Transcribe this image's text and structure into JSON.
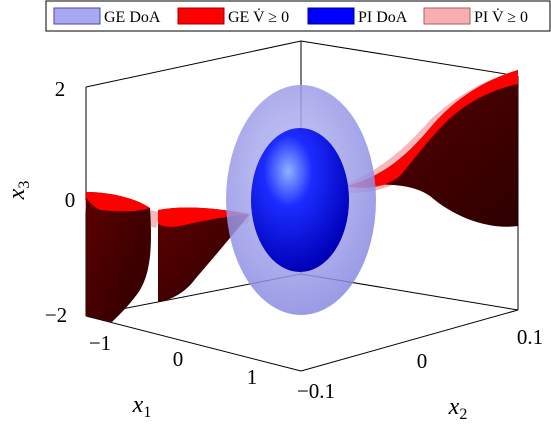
{
  "chart_data": {
    "type": "surface3d",
    "legend": [
      {
        "label": "GE DoA",
        "color": "#a9a9f2",
        "border": "#4a4a9a"
      },
      {
        "label": "GE V̇ ≥ 0",
        "color": "#ff0000",
        "border": "#9a0000"
      },
      {
        "label": "PI DoA",
        "color": "#0000ff",
        "border": "#00008a"
      },
      {
        "label": "PI V̇ ≥ 0",
        "color": "#f7aeb0",
        "border": "#b35a5e"
      }
    ],
    "legend_placement": "top",
    "axes": {
      "x1": {
        "label": "x",
        "sub": "1",
        "ticks": [
          "−1",
          "0",
          "1"
        ],
        "lim": [
          -1.5,
          1.5
        ]
      },
      "x2": {
        "label": "x",
        "sub": "2",
        "ticks": [
          "−0.1",
          "0",
          "0.1"
        ],
        "lim": [
          -0.12,
          0.12
        ]
      },
      "x3": {
        "label": "x",
        "sub": "3",
        "ticks": [
          "2",
          "0",
          "−2"
        ],
        "lim": [
          -2,
          2
        ]
      }
    },
    "colors": {
      "ge_doa": "#9d9de8",
      "pi_doa": "#0a0aff",
      "ge_surface_top": "#ff0000",
      "ge_surface_side": "#5a0000",
      "pi_surface": "#f7aeb0"
    }
  }
}
